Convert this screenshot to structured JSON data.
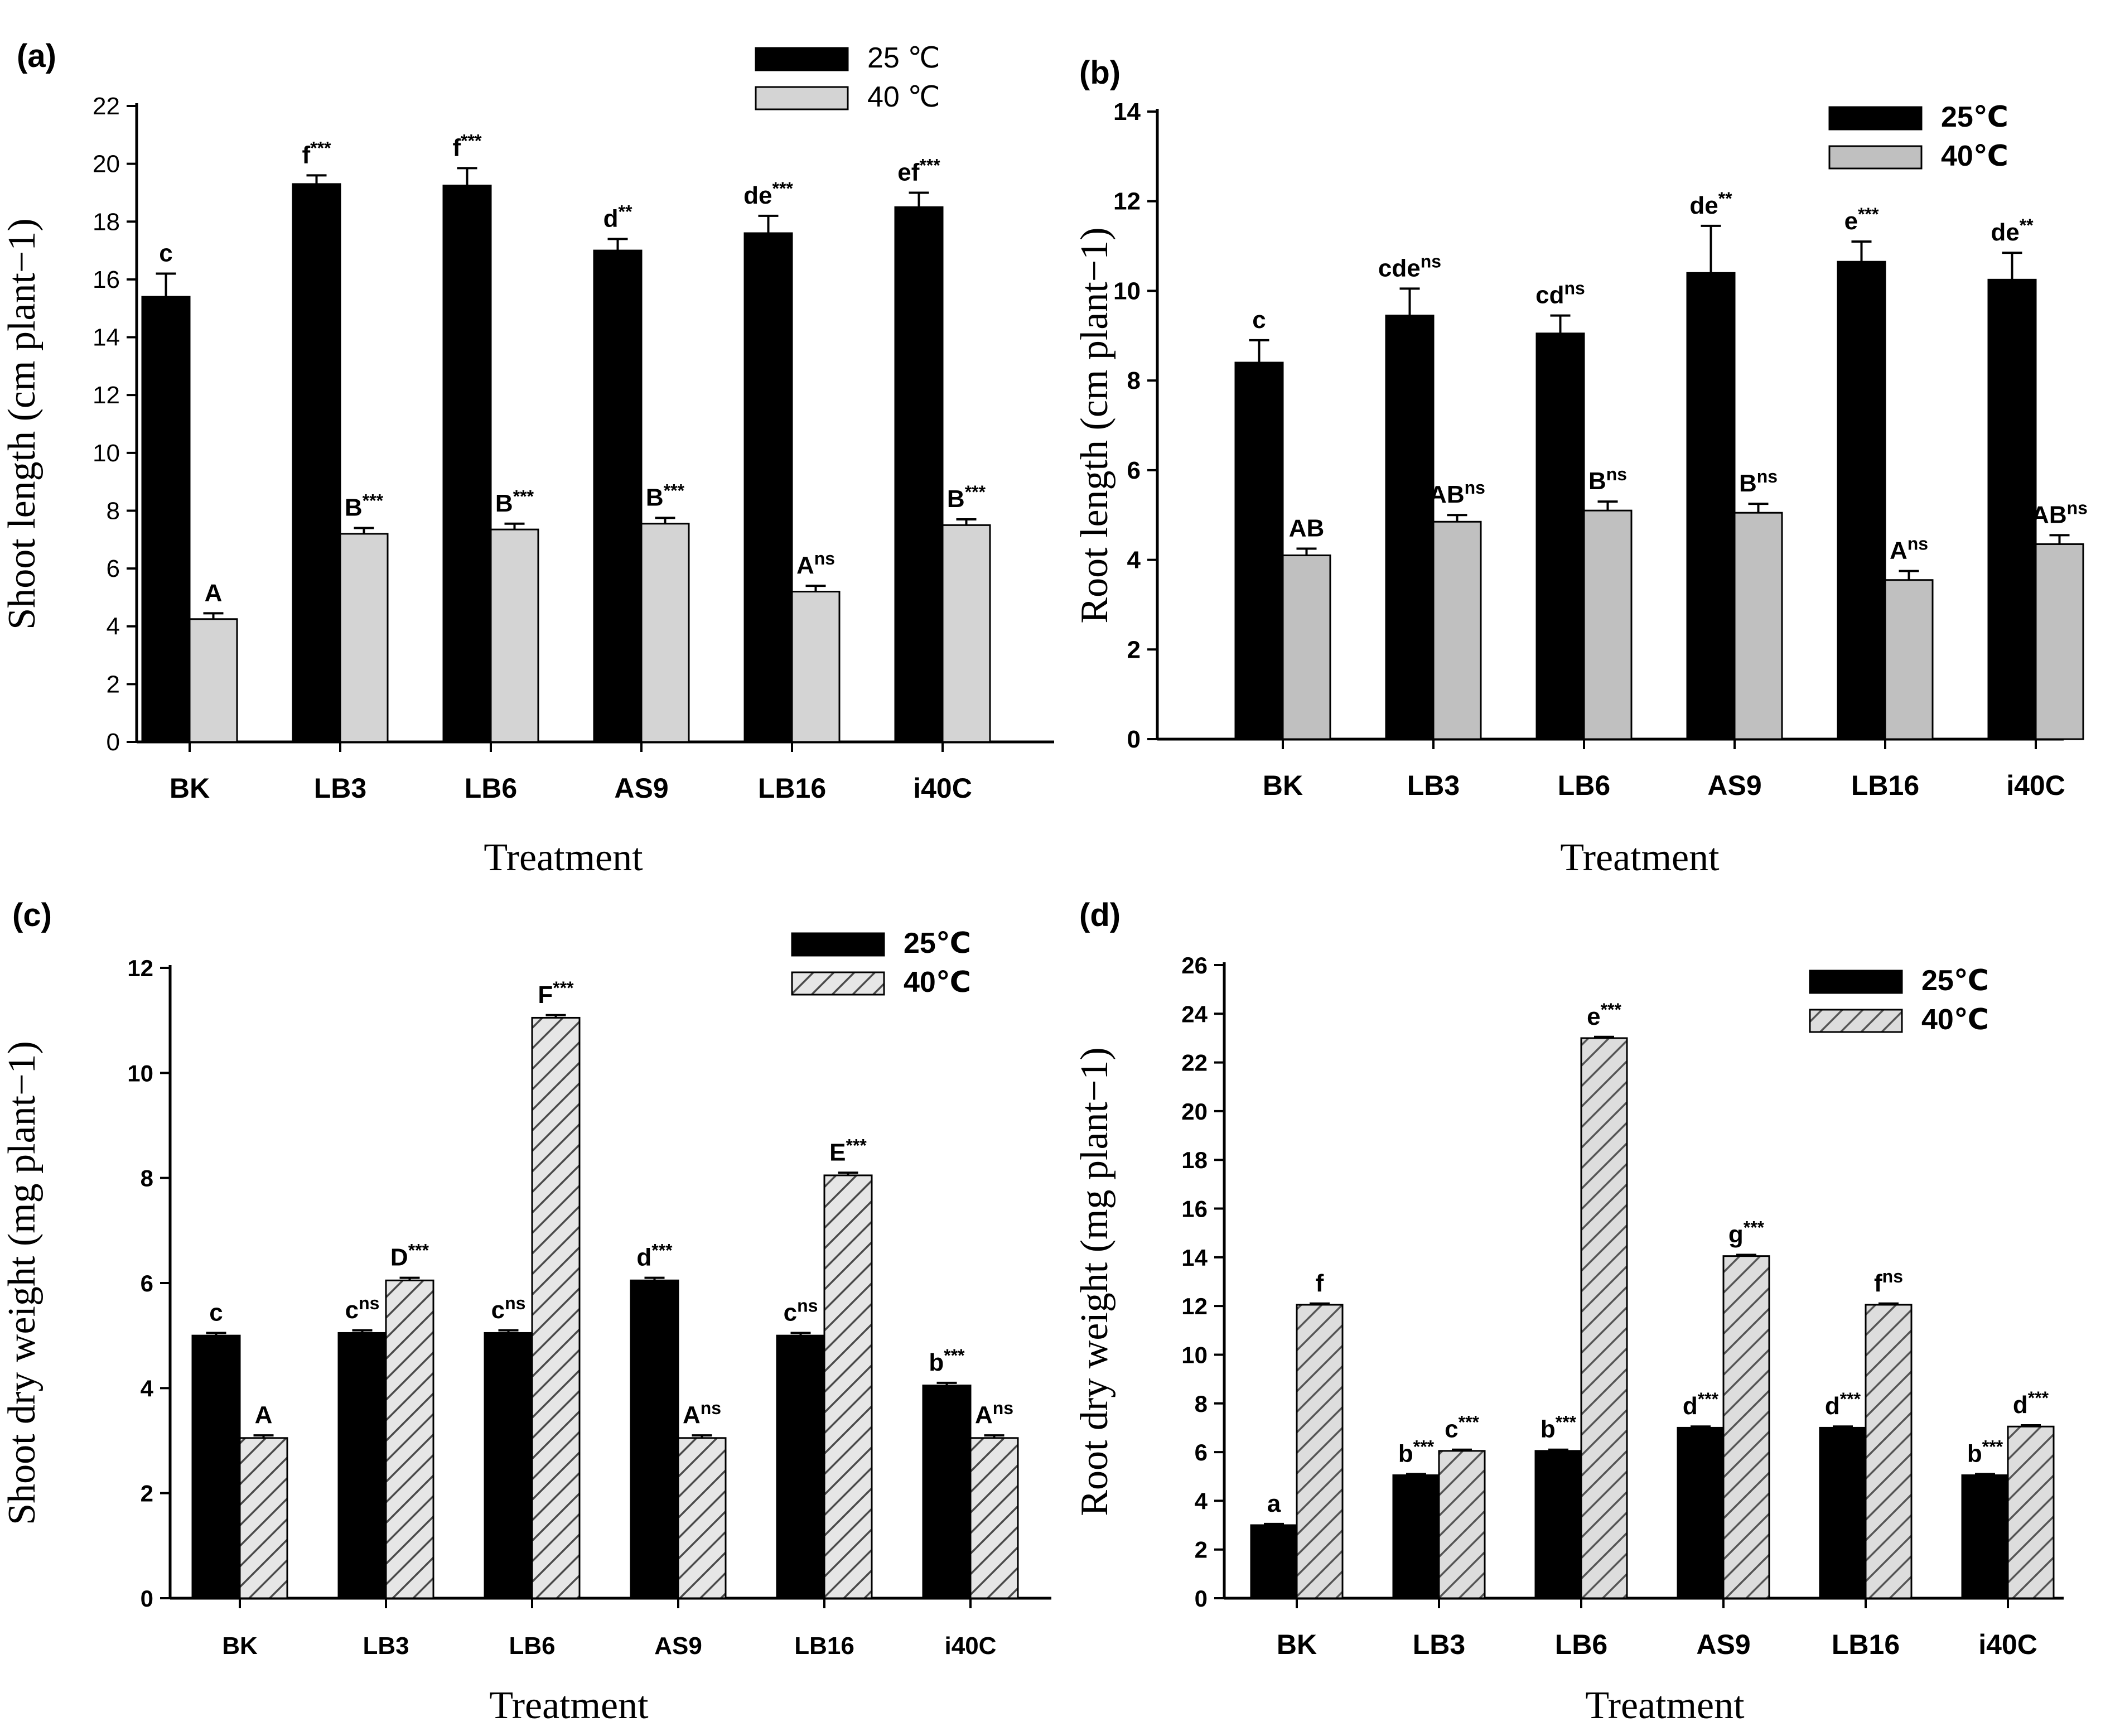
{
  "figure": {
    "colors": {
      "dark": "#000000",
      "light": "#d4d4d4",
      "light_b": "#c0c0c0",
      "hatch": "#4a4a4a"
    },
    "panels": [
      {
        "id": "a",
        "label": "(a)"
      },
      {
        "id": "b",
        "label": "(b)"
      },
      {
        "id": "c",
        "label": "(c)"
      },
      {
        "id": "d",
        "label": "(d)"
      }
    ]
  },
  "chart_data": [
    {
      "type": "bar",
      "panel": "(a)",
      "categories": [
        "BK",
        "LB3",
        "LB6",
        "AS9",
        "LB16",
        "i40C"
      ],
      "xlabel": "Treatment",
      "ylabel": "Shoot length (cm plant−1)",
      "ylim": [
        0,
        22
      ],
      "yticks": [
        0,
        2,
        4,
        6,
        8,
        10,
        12,
        14,
        16,
        18,
        20,
        22
      ],
      "legend_position": "top-right",
      "series": [
        {
          "name": "25 ℃",
          "fill": "solid-black",
          "values": [
            15.4,
            19.3,
            19.25,
            17.0,
            17.6,
            18.5
          ],
          "errors": [
            0.8,
            0.3,
            0.6,
            0.4,
            0.6,
            0.5
          ],
          "labels": [
            {
              "base": "c",
              "sup": ""
            },
            {
              "base": "f",
              "sup": "***"
            },
            {
              "base": "f",
              "sup": "***"
            },
            {
              "base": "d",
              "sup": "**"
            },
            {
              "base": "de",
              "sup": "***"
            },
            {
              "base": "ef",
              "sup": "***"
            }
          ]
        },
        {
          "name": "40 ℃",
          "fill": "light-gray",
          "values": [
            4.25,
            7.2,
            7.35,
            7.55,
            5.2,
            7.5
          ],
          "errors": [
            0.2,
            0.2,
            0.2,
            0.2,
            0.2,
            0.2
          ],
          "labels": [
            {
              "base": "A",
              "sup": ""
            },
            {
              "base": "B",
              "sup": "***"
            },
            {
              "base": "B",
              "sup": "***"
            },
            {
              "base": "B",
              "sup": "***"
            },
            {
              "base": "A",
              "sup": "ns"
            },
            {
              "base": "B",
              "sup": "***"
            }
          ]
        }
      ]
    },
    {
      "type": "bar",
      "panel": "(b)",
      "categories": [
        "BK",
        "LB3",
        "LB6",
        "AS9",
        "LB16",
        "i40C"
      ],
      "xlabel": "Treatment",
      "ylabel": "Root length (cm plant−1)",
      "ylim": [
        0,
        14
      ],
      "yticks": [
        0,
        2,
        4,
        6,
        8,
        10,
        12,
        14
      ],
      "legend_position": "top-right",
      "series": [
        {
          "name": "25℃",
          "fill": "solid-black",
          "values": [
            8.4,
            9.45,
            9.05,
            10.4,
            10.65,
            10.25
          ],
          "errors": [
            0.5,
            0.6,
            0.4,
            1.05,
            0.45,
            0.6
          ],
          "labels": [
            {
              "base": "c",
              "sup": ""
            },
            {
              "base": "cde",
              "sup": "ns"
            },
            {
              "base": "cd",
              "sup": "ns"
            },
            {
              "base": "de",
              "sup": "**"
            },
            {
              "base": "e",
              "sup": "***"
            },
            {
              "base": "de",
              "sup": "**"
            }
          ]
        },
        {
          "name": "40℃",
          "fill": "light-gray",
          "values": [
            4.1,
            4.85,
            5.1,
            5.05,
            3.55,
            4.35
          ],
          "errors": [
            0.15,
            0.15,
            0.2,
            0.2,
            0.2,
            0.2
          ],
          "labels": [
            {
              "base": "AB",
              "sup": ""
            },
            {
              "base": "AB",
              "sup": "ns"
            },
            {
              "base": "B",
              "sup": "ns"
            },
            {
              "base": "B",
              "sup": "ns"
            },
            {
              "base": "A",
              "sup": "ns"
            },
            {
              "base": "AB",
              "sup": "ns"
            }
          ]
        }
      ]
    },
    {
      "type": "bar",
      "panel": "(c)",
      "categories": [
        "BK",
        "LB3",
        "LB6",
        "AS9",
        "LB16",
        "i40C"
      ],
      "xlabel": "Treatment",
      "ylabel": "Shoot dry weight (mg plant−1)",
      "ylim": [
        0,
        12
      ],
      "yticks": [
        0,
        2,
        4,
        6,
        8,
        10,
        12
      ],
      "legend_position": "top-right",
      "series": [
        {
          "name": "25℃",
          "fill": "solid-black",
          "values": [
            5.0,
            5.05,
            5.05,
            6.05,
            5.0,
            4.05
          ],
          "errors": [
            0.05,
            0.05,
            0.05,
            0.05,
            0.05,
            0.05
          ],
          "labels": [
            {
              "base": "c",
              "sup": ""
            },
            {
              "base": "c",
              "sup": "ns"
            },
            {
              "base": "c",
              "sup": "ns"
            },
            {
              "base": "d",
              "sup": "***"
            },
            {
              "base": "c",
              "sup": "ns"
            },
            {
              "base": "b",
              "sup": "***"
            }
          ]
        },
        {
          "name": "40℃",
          "fill": "hatched",
          "values": [
            3.05,
            6.05,
            11.05,
            3.05,
            8.05,
            3.05
          ],
          "errors": [
            0.05,
            0.05,
            0.05,
            0.05,
            0.05,
            0.05
          ],
          "labels": [
            {
              "base": "A",
              "sup": ""
            },
            {
              "base": "D",
              "sup": "***"
            },
            {
              "base": "F",
              "sup": "***"
            },
            {
              "base": "A",
              "sup": "ns"
            },
            {
              "base": "E",
              "sup": "***"
            },
            {
              "base": "A",
              "sup": "ns"
            }
          ]
        }
      ]
    },
    {
      "type": "bar",
      "panel": "(d)",
      "categories": [
        "BK",
        "LB3",
        "LB6",
        "AS9",
        "LB16",
        "i40C"
      ],
      "xlabel": "Treatment",
      "ylabel": "Root dry weight (mg plant−1)",
      "ylim": [
        0,
        26
      ],
      "yticks": [
        0,
        2,
        4,
        6,
        8,
        10,
        12,
        14,
        16,
        18,
        20,
        22,
        24,
        26
      ],
      "legend_position": "top-right",
      "series": [
        {
          "name": "25℃",
          "fill": "solid-black",
          "values": [
            3.0,
            5.05,
            6.05,
            7.0,
            7.0,
            5.05
          ],
          "errors": [
            0.05,
            0.05,
            0.05,
            0.05,
            0.05,
            0.05
          ],
          "labels": [
            {
              "base": "a",
              "sup": ""
            },
            {
              "base": "b",
              "sup": "***"
            },
            {
              "base": "b",
              "sup": "***"
            },
            {
              "base": "d",
              "sup": "***"
            },
            {
              "base": "d",
              "sup": "***"
            },
            {
              "base": "b",
              "sup": "***"
            }
          ]
        },
        {
          "name": "40℃",
          "fill": "hatched",
          "values": [
            12.05,
            6.05,
            23.0,
            14.05,
            12.05,
            7.05
          ],
          "errors": [
            0.05,
            0.05,
            0.05,
            0.05,
            0.05,
            0.05
          ],
          "labels": [
            {
              "base": "f",
              "sup": ""
            },
            {
              "base": "c",
              "sup": "***"
            },
            {
              "base": "e",
              "sup": "***"
            },
            {
              "base": "g",
              "sup": "***"
            },
            {
              "base": "f",
              "sup": "ns"
            },
            {
              "base": "d",
              "sup": "***"
            }
          ]
        }
      ]
    }
  ]
}
